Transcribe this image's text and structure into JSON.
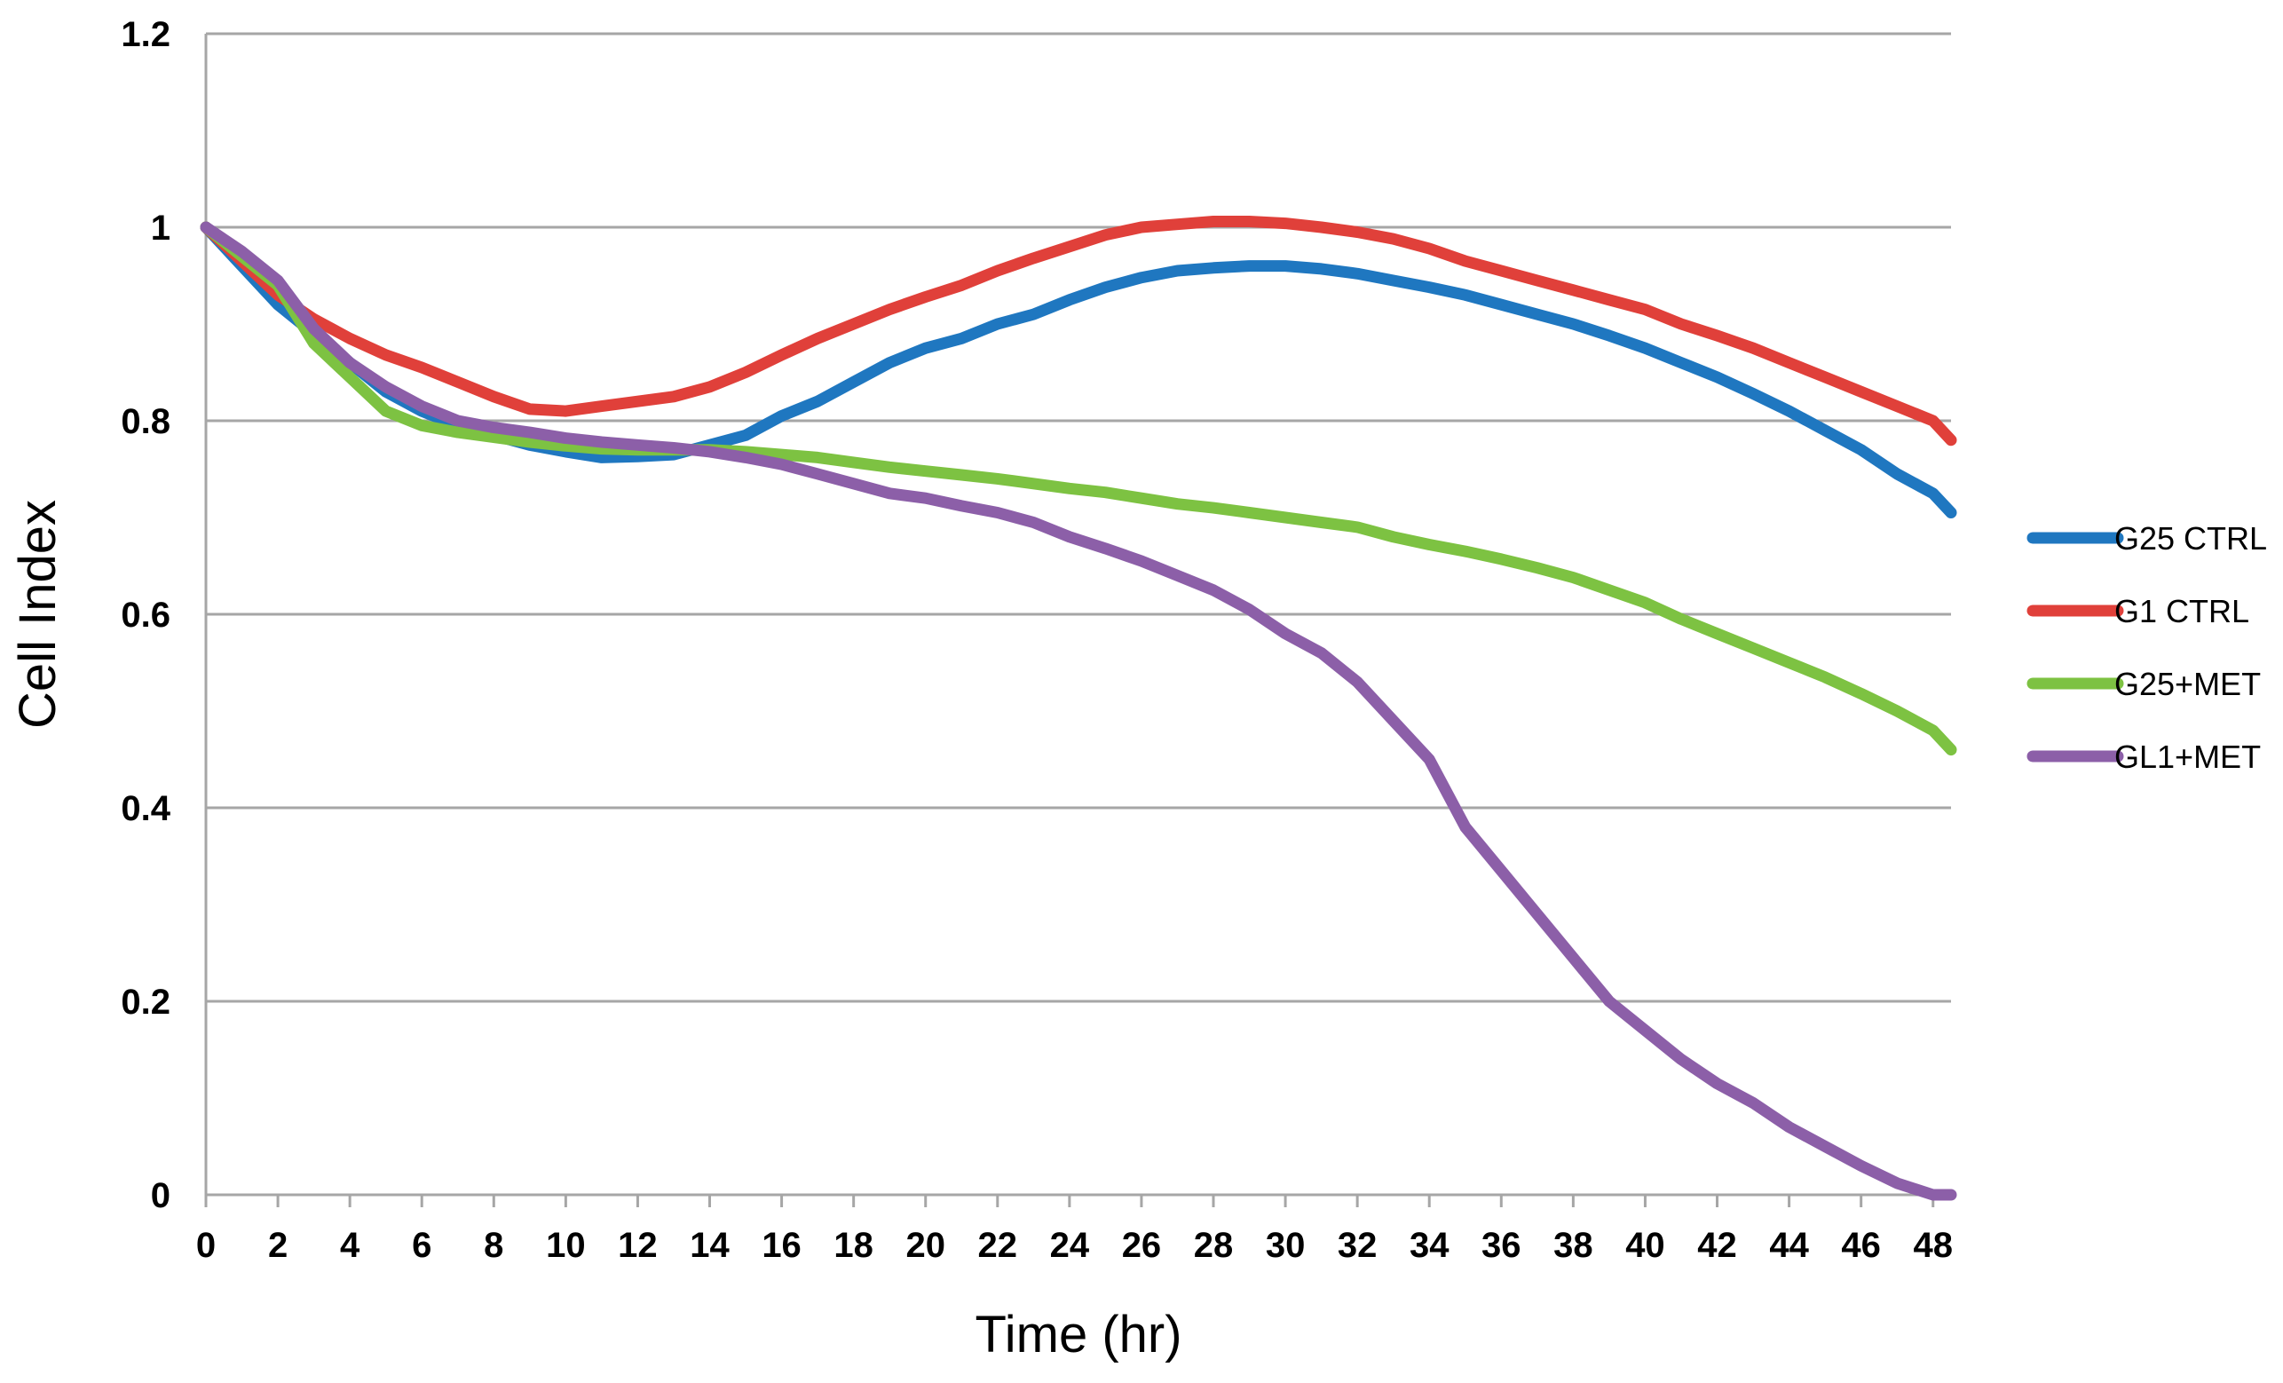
{
  "chart_data": {
    "type": "line",
    "title": "",
    "xlabel": "Time (hr)",
    "ylabel": "Cell Index",
    "xlim": [
      0,
      48.5
    ],
    "ylim": [
      0,
      1.2
    ],
    "x_ticks": [
      "0",
      "2",
      "4",
      "6",
      "8",
      "10",
      "12",
      "14",
      "16",
      "18",
      "20",
      "22",
      "24",
      "26",
      "28",
      "30",
      "32",
      "34",
      "36",
      "38",
      "40",
      "42",
      "44",
      "46",
      "48"
    ],
    "y_ticks": [
      "0",
      "0.2",
      "0.4",
      "0.6",
      "0.8",
      "1",
      "1.2"
    ],
    "grid": true,
    "legend_position": "right",
    "series": [
      {
        "name": "G25 CTRL",
        "color": "#1F77C0",
        "points": [
          [
            0,
            1.0
          ],
          [
            1,
            0.96
          ],
          [
            2,
            0.92
          ],
          [
            3,
            0.89
          ],
          [
            4,
            0.86
          ],
          [
            5,
            0.83
          ],
          [
            6,
            0.81
          ],
          [
            7,
            0.795
          ],
          [
            8,
            0.785
          ],
          [
            9,
            0.775
          ],
          [
            10,
            0.768
          ],
          [
            11,
            0.762
          ],
          [
            12,
            0.763
          ],
          [
            13,
            0.765
          ],
          [
            14,
            0.775
          ],
          [
            15,
            0.785
          ],
          [
            16,
            0.805
          ],
          [
            17,
            0.82
          ],
          [
            18,
            0.84
          ],
          [
            19,
            0.86
          ],
          [
            20,
            0.875
          ],
          [
            21,
            0.885
          ],
          [
            22,
            0.9
          ],
          [
            23,
            0.91
          ],
          [
            24,
            0.925
          ],
          [
            25,
            0.938
          ],
          [
            26,
            0.948
          ],
          [
            27,
            0.955
          ],
          [
            28,
            0.958
          ],
          [
            29,
            0.96
          ],
          [
            30,
            0.96
          ],
          [
            31,
            0.957
          ],
          [
            32,
            0.952
          ],
          [
            33,
            0.945
          ],
          [
            34,
            0.938
          ],
          [
            35,
            0.93
          ],
          [
            36,
            0.92
          ],
          [
            37,
            0.91
          ],
          [
            38,
            0.9
          ],
          [
            39,
            0.888
          ],
          [
            40,
            0.875
          ],
          [
            41,
            0.86
          ],
          [
            42,
            0.845
          ],
          [
            43,
            0.828
          ],
          [
            44,
            0.81
          ],
          [
            45,
            0.79
          ],
          [
            46,
            0.77
          ],
          [
            47,
            0.745
          ],
          [
            48,
            0.725
          ],
          [
            48.5,
            0.705
          ]
        ]
      },
      {
        "name": "G1 CTRL",
        "color": "#E0403A",
        "points": [
          [
            0,
            1.0
          ],
          [
            1,
            0.965
          ],
          [
            2,
            0.93
          ],
          [
            3,
            0.905
          ],
          [
            4,
            0.885
          ],
          [
            5,
            0.868
          ],
          [
            6,
            0.855
          ],
          [
            7,
            0.84
          ],
          [
            8,
            0.825
          ],
          [
            9,
            0.812
          ],
          [
            10,
            0.81
          ],
          [
            11,
            0.815
          ],
          [
            12,
            0.82
          ],
          [
            13,
            0.825
          ],
          [
            14,
            0.835
          ],
          [
            15,
            0.85
          ],
          [
            16,
            0.868
          ],
          [
            17,
            0.885
          ],
          [
            18,
            0.9
          ],
          [
            19,
            0.915
          ],
          [
            20,
            0.928
          ],
          [
            21,
            0.94
          ],
          [
            22,
            0.955
          ],
          [
            23,
            0.968
          ],
          [
            24,
            0.98
          ],
          [
            25,
            0.992
          ],
          [
            26,
            1.0
          ],
          [
            27,
            1.003
          ],
          [
            28,
            1.006
          ],
          [
            29,
            1.006
          ],
          [
            30,
            1.004
          ],
          [
            31,
            1.0
          ],
          [
            32,
            0.995
          ],
          [
            33,
            0.988
          ],
          [
            34,
            0.978
          ],
          [
            35,
            0.965
          ],
          [
            36,
            0.955
          ],
          [
            37,
            0.945
          ],
          [
            38,
            0.935
          ],
          [
            39,
            0.925
          ],
          [
            40,
            0.915
          ],
          [
            41,
            0.9
          ],
          [
            42,
            0.888
          ],
          [
            43,
            0.875
          ],
          [
            44,
            0.86
          ],
          [
            45,
            0.845
          ],
          [
            46,
            0.83
          ],
          [
            47,
            0.815
          ],
          [
            48,
            0.8
          ],
          [
            48.5,
            0.78
          ]
        ]
      },
      {
        "name": "G25+MET",
        "color": "#7DC242",
        "points": [
          [
            0,
            1.0
          ],
          [
            1,
            0.97
          ],
          [
            2,
            0.94
          ],
          [
            3,
            0.88
          ],
          [
            4,
            0.845
          ],
          [
            5,
            0.81
          ],
          [
            6,
            0.795
          ],
          [
            7,
            0.788
          ],
          [
            8,
            0.783
          ],
          [
            9,
            0.778
          ],
          [
            10,
            0.774
          ],
          [
            11,
            0.771
          ],
          [
            12,
            0.77
          ],
          [
            13,
            0.77
          ],
          [
            14,
            0.77
          ],
          [
            15,
            0.768
          ],
          [
            16,
            0.765
          ],
          [
            17,
            0.762
          ],
          [
            18,
            0.757
          ],
          [
            19,
            0.752
          ],
          [
            20,
            0.748
          ],
          [
            21,
            0.744
          ],
          [
            22,
            0.74
          ],
          [
            23,
            0.735
          ],
          [
            24,
            0.73
          ],
          [
            25,
            0.726
          ],
          [
            26,
            0.72
          ],
          [
            27,
            0.714
          ],
          [
            28,
            0.71
          ],
          [
            29,
            0.705
          ],
          [
            30,
            0.7
          ],
          [
            31,
            0.695
          ],
          [
            32,
            0.69
          ],
          [
            33,
            0.68
          ],
          [
            34,
            0.672
          ],
          [
            35,
            0.665
          ],
          [
            36,
            0.657
          ],
          [
            37,
            0.648
          ],
          [
            38,
            0.638
          ],
          [
            39,
            0.625
          ],
          [
            40,
            0.612
          ],
          [
            41,
            0.595
          ],
          [
            42,
            0.58
          ],
          [
            43,
            0.565
          ],
          [
            44,
            0.55
          ],
          [
            45,
            0.535
          ],
          [
            46,
            0.518
          ],
          [
            47,
            0.5
          ],
          [
            48,
            0.48
          ],
          [
            48.5,
            0.46
          ]
        ]
      },
      {
        "name": "GL1+MET",
        "color": "#8C5FA8",
        "points": [
          [
            0,
            1.0
          ],
          [
            1,
            0.975
          ],
          [
            2,
            0.945
          ],
          [
            3,
            0.895
          ],
          [
            4,
            0.86
          ],
          [
            5,
            0.835
          ],
          [
            6,
            0.815
          ],
          [
            7,
            0.8
          ],
          [
            8,
            0.793
          ],
          [
            9,
            0.788
          ],
          [
            10,
            0.782
          ],
          [
            11,
            0.778
          ],
          [
            12,
            0.775
          ],
          [
            13,
            0.772
          ],
          [
            14,
            0.768
          ],
          [
            15,
            0.762
          ],
          [
            16,
            0.755
          ],
          [
            17,
            0.745
          ],
          [
            18,
            0.735
          ],
          [
            19,
            0.725
          ],
          [
            20,
            0.72
          ],
          [
            21,
            0.712
          ],
          [
            22,
            0.705
          ],
          [
            23,
            0.695
          ],
          [
            24,
            0.68
          ],
          [
            25,
            0.668
          ],
          [
            26,
            0.655
          ],
          [
            27,
            0.64
          ],
          [
            28,
            0.625
          ],
          [
            29,
            0.605
          ],
          [
            30,
            0.58
          ],
          [
            31,
            0.56
          ],
          [
            32,
            0.53
          ],
          [
            33,
            0.49
          ],
          [
            34,
            0.45
          ],
          [
            35,
            0.38
          ],
          [
            36,
            0.335
          ],
          [
            37,
            0.29
          ],
          [
            38,
            0.245
          ],
          [
            39,
            0.2
          ],
          [
            40,
            0.17
          ],
          [
            41,
            0.14
          ],
          [
            42,
            0.115
          ],
          [
            43,
            0.095
          ],
          [
            44,
            0.07
          ],
          [
            45,
            0.05
          ],
          [
            46,
            0.03
          ],
          [
            47,
            0.012
          ],
          [
            48,
            0.0
          ],
          [
            48.5,
            0.0
          ]
        ]
      }
    ]
  }
}
